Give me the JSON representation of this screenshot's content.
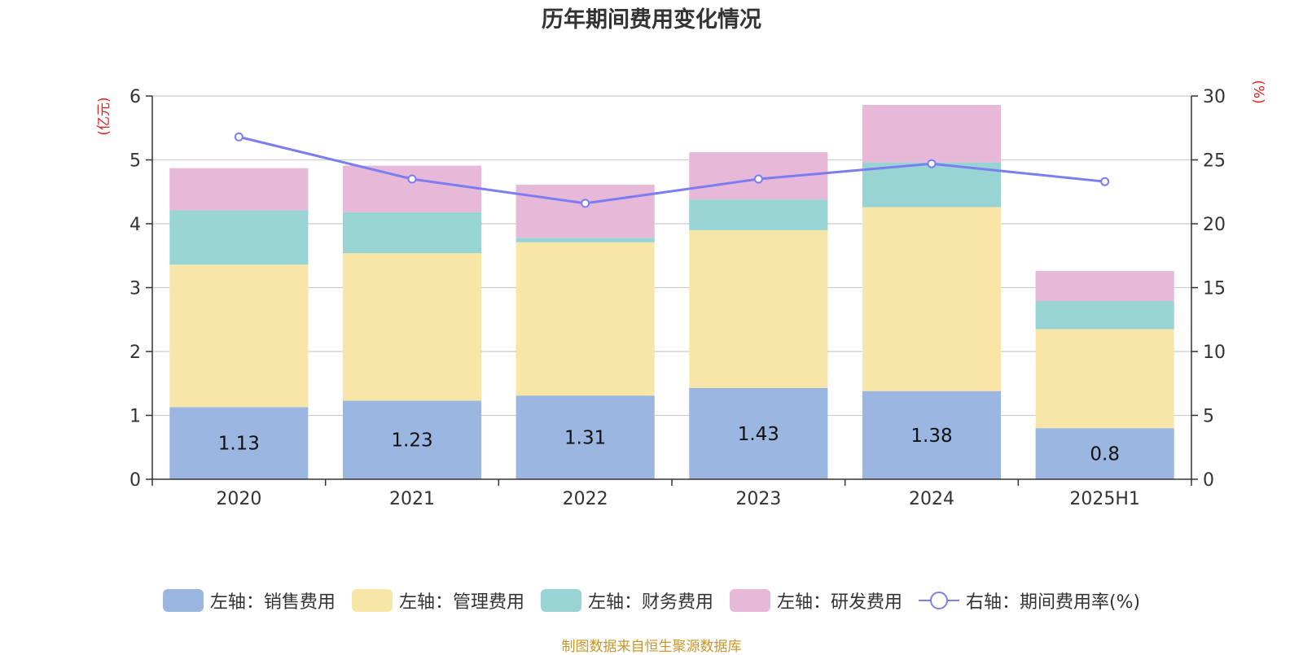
{
  "title": "历年期间费用变化情况",
  "footnote": "制图数据来自恒生聚源数据库",
  "chart_data": {
    "type": "bar",
    "stacked": true,
    "categories": [
      "2020",
      "2021",
      "2022",
      "2023",
      "2024",
      "2025H1"
    ],
    "left_axis": {
      "unit_label": "(亿元)",
      "ylim": [
        0,
        6
      ],
      "ticks": [
        0,
        1,
        2,
        3,
        4,
        5,
        6
      ]
    },
    "right_axis": {
      "unit_label": "(%)",
      "ylim": [
        0,
        30
      ],
      "ticks": [
        0,
        5,
        10,
        15,
        20,
        25,
        30
      ]
    },
    "grid": true,
    "legend_position": "bottom",
    "series": [
      {
        "name": "左轴：销售费用",
        "axis": "left",
        "color": "#9bb7e1",
        "values": [
          1.13,
          1.23,
          1.31,
          1.43,
          1.38,
          0.8
        ],
        "show_labels": true
      },
      {
        "name": "左轴：管理费用",
        "axis": "left",
        "color": "#f7e6a8",
        "values": [
          2.23,
          2.31,
          2.4,
          2.47,
          2.88,
          1.55
        ]
      },
      {
        "name": "左轴：财务费用",
        "axis": "left",
        "color": "#98d4d4",
        "values": [
          0.85,
          0.64,
          0.07,
          0.48,
          0.7,
          0.44
        ]
      },
      {
        "name": "左轴：研发费用",
        "axis": "left",
        "color": "#e7b8d8",
        "values": [
          0.66,
          0.73,
          0.83,
          0.74,
          0.9,
          0.47
        ]
      },
      {
        "name": "右轴：期间费用率(%)",
        "axis": "right",
        "type": "line",
        "color": "#7b7df0",
        "values": [
          26.8,
          23.5,
          21.6,
          23.5,
          24.7,
          23.3
        ]
      }
    ]
  }
}
